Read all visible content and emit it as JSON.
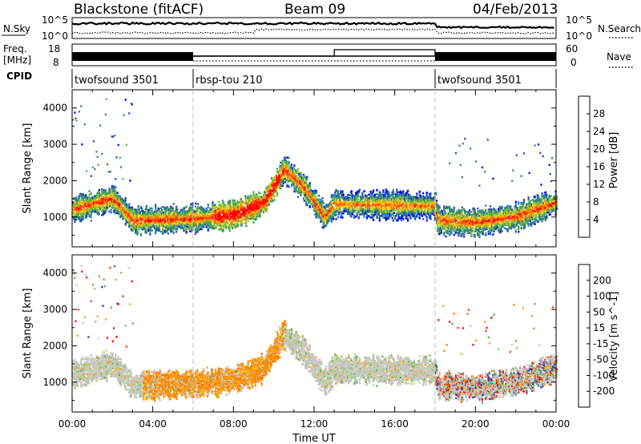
{
  "header": {
    "title": "Blackstone (fitACF)",
    "beam": "Beam 09",
    "date": "04/Feb/2013"
  },
  "noise_panel": {
    "left_label": "N.Sky",
    "left_ticks": [
      "10^5",
      "10^0"
    ],
    "right_ticks": [
      "10^5",
      "10^0"
    ],
    "right_label": "N.Search"
  },
  "freq_panel": {
    "left_label_1": "Freq.",
    "left_label_2": "[MHz]",
    "left_ticks": [
      "18",
      "8"
    ],
    "right_ticks": [
      "60",
      "0"
    ],
    "right_label": "Nave"
  },
  "cpid": {
    "label": "CPID",
    "segments": [
      {
        "name": "twofsound 3501",
        "start_hour": 0,
        "end_hour": 6
      },
      {
        "name": "rbsp-tou 210",
        "start_hour": 6,
        "end_hour": 18
      },
      {
        "name": "twofsound 3501",
        "start_hour": 18,
        "end_hour": 24
      }
    ]
  },
  "power_panel": {
    "ylabel": "Slant Range [km]",
    "colorbar_label": "Power [dB]",
    "colorbar_ticks": [
      "28",
      "24",
      "20",
      "16",
      "12",
      "8",
      "4"
    ],
    "colors": [
      "#0000ff",
      "#1e50c8",
      "#2f7d9e",
      "#3c8c5a",
      "#55b450",
      "#8cc83c",
      "#ffd21e",
      "#ff9b00",
      "#ff5a00",
      "#ff0000"
    ]
  },
  "velocity_panel": {
    "ylabel": "Slant Range [km]",
    "colorbar_label": "Velocity [m s^-1]",
    "colorbar_ticks": [
      "200",
      "100",
      "50",
      "15",
      "-15",
      "-50",
      "-100",
      "-200"
    ],
    "colors": [
      "#2830b4",
      "#2878c8",
      "#50b450",
      "#78d23c",
      "#c8c8c0",
      "#ffa500",
      "#ff7800",
      "#ff3c00",
      "#ff0000"
    ]
  },
  "chart_data": {
    "type": "heatmap",
    "xlabel": "Time UT",
    "x_ticks": [
      "00:00",
      "04:00",
      "08:00",
      "12:00",
      "16:00",
      "20:00",
      "00:00"
    ],
    "xlim_hours": [
      0,
      24
    ],
    "ylim_km": [
      180,
      4500
    ],
    "y_ticks": [
      1000,
      2000,
      3000,
      4000
    ],
    "mode_change_hours": [
      6,
      18
    ],
    "freq_mhz": [
      {
        "start_hour": 0,
        "end_hour": 6,
        "value": "alternating 10-16"
      },
      {
        "start_hour": 6,
        "end_hour": 18,
        "value": 10.5
      },
      {
        "start_hour": 18,
        "end_hour": 24,
        "value": "alternating 10-16"
      }
    ],
    "echo_band_center_km": [
      [
        0,
        1200
      ],
      [
        2,
        1500
      ],
      [
        3,
        900
      ],
      [
        6,
        950
      ],
      [
        8,
        1050
      ],
      [
        9.5,
        1400
      ],
      [
        10.5,
        2300
      ],
      [
        11.5,
        1800
      ],
      [
        12.5,
        1000
      ],
      [
        13,
        1350
      ],
      [
        18,
        1300
      ],
      [
        18.1,
        900
      ],
      [
        20,
        850
      ],
      [
        22,
        1000
      ],
      [
        24,
        1400
      ]
    ],
    "power_peak_db": 28,
    "velocity_range_ms": [
      -200,
      200
    ]
  }
}
